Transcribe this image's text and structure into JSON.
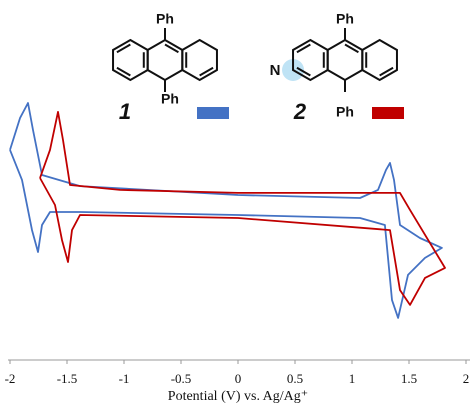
{
  "chart_data": {
    "type": "line",
    "x_label": "Potential (V) vs. Ag/Ag⁺",
    "annotations": [
      "Ph",
      "Ph",
      "Ph",
      "Ph",
      "N"
    ],
    "series": [
      {
        "name": "1",
        "color": "#4472c4",
        "x": [
          -2.0,
          -1.912,
          -1.842,
          -1.798,
          -1.719,
          -1.386,
          0,
          1.07,
          1.228,
          1.298,
          1.333,
          1.368,
          1.421,
          1.596,
          1.789,
          1.64,
          1.491,
          1.404,
          1.351,
          1.289,
          1.07,
          0,
          -1.386,
          -1.649,
          -1.719,
          -1.754,
          -1.807,
          -1.895,
          -2.0
        ],
        "values": [
          77.8,
          89.6,
          95.2,
          85.2,
          68.5,
          64.4,
          61.1,
          60,
          63,
          70.4,
          73,
          66.7,
          50,
          45.2,
          41.5,
          37.8,
          31.5,
          15.6,
          22.2,
          50,
          52.6,
          53.7,
          54.8,
          54.8,
          50,
          40,
          48.1,
          66.7,
          77.8
        ]
      },
      {
        "name": "2",
        "color": "#c00000",
        "x": [
          -1.737,
          -1.649,
          -1.579,
          -1.535,
          -1.474,
          -1.035,
          0,
          1.421,
          1.509,
          1.816,
          1.64,
          1.509,
          1.421,
          1.333,
          0,
          -1.386,
          -1.456,
          -1.491,
          -1.544,
          -1.605,
          -1.737
        ],
        "values": [
          67.4,
          77.8,
          91.9,
          81.5,
          64.8,
          63,
          61.9,
          61.9,
          55.6,
          34.1,
          30.4,
          20.4,
          25.9,
          48.1,
          52.6,
          53.7,
          48.1,
          36.3,
          44.4,
          57.4,
          67.4
        ]
      }
    ],
    "xlim": [
      -2,
      2
    ],
    "ylim": [
      0,
      100
    ],
    "xticks": [
      -2,
      -1.5,
      -1,
      -0.5,
      0,
      0.5,
      1,
      1.5,
      2
    ]
  }
}
